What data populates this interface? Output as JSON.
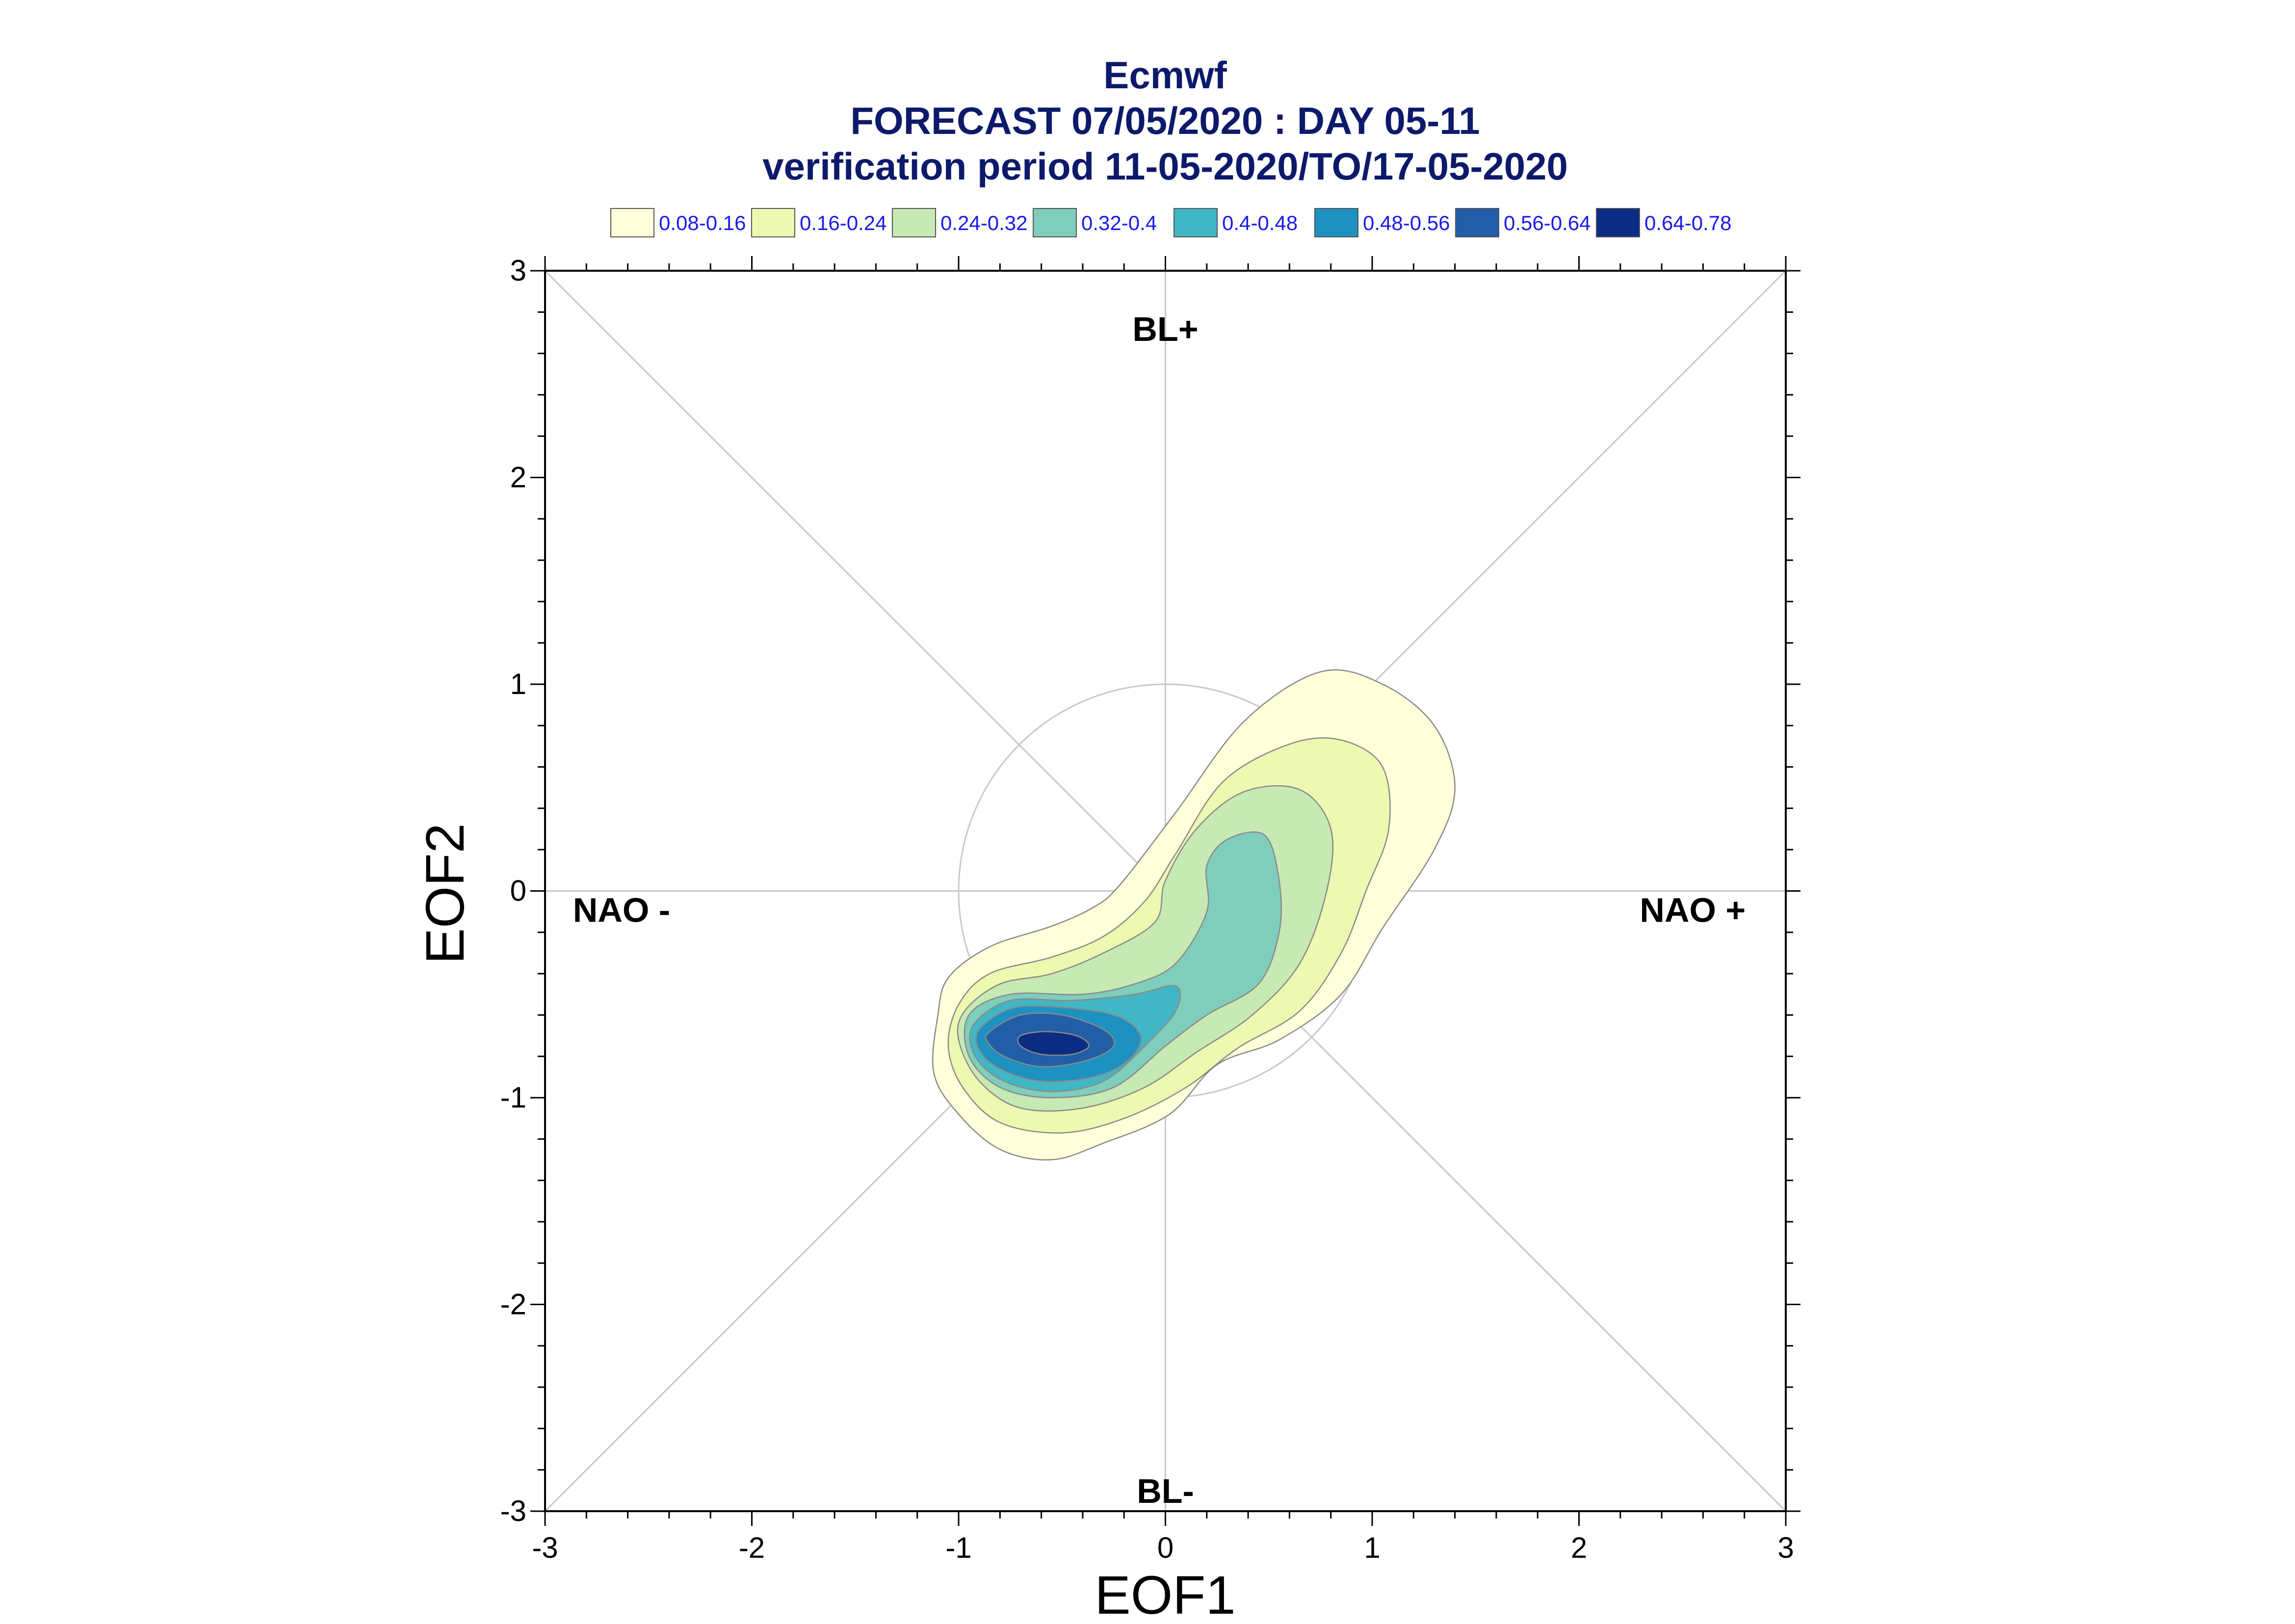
{
  "chart_data": {
    "type": "contour",
    "title_lines": [
      "Ecmwf",
      "FORECAST 07/05/2020 : DAY 05-11",
      "verification period 11-05-2020/TO/17-05-2020"
    ],
    "xlabel": "EOF1",
    "ylabel": "EOF2",
    "xlim": [
      -3,
      3
    ],
    "ylim": [
      -3,
      3
    ],
    "xticks": [
      "-3",
      "-2",
      "-1",
      "0",
      "1",
      "2",
      "3"
    ],
    "yticks": [
      "-3",
      "-2",
      "-1",
      "0",
      "1",
      "2",
      "3"
    ],
    "grid": false,
    "reference_circle_radius": 1,
    "region_labels": [
      {
        "text": "BL+",
        "x": 0,
        "y": 2.72
      },
      {
        "text": "BL-",
        "x": 0,
        "y": -2.9
      },
      {
        "text": "NAO -",
        "x": -2.63,
        "y": -0.09
      },
      {
        "text": "NAO +",
        "x": 2.55,
        "y": -0.09
      }
    ],
    "legend": [
      {
        "label": "0.08-0.16",
        "color": "#ffffd9"
      },
      {
        "label": "0.16-0.24",
        "color": "#edf8b1"
      },
      {
        "label": "0.24-0.32",
        "color": "#c7e9b4"
      },
      {
        "label": "0.32-0.4",
        "color": "#7fcdbb"
      },
      {
        "label": "0.4-0.48",
        "color": "#41b6c4"
      },
      {
        "label": "0.48-0.56",
        "color": "#1d91c0"
      },
      {
        "label": "0.56-0.64",
        "color": "#225ea8"
      },
      {
        "label": "0.64-0.78",
        "color": "#0c2c84"
      }
    ],
    "contours": [
      {
        "level": "0.08-0.16",
        "points": [
          [
            -1.1,
            -0.6
          ],
          [
            -1.05,
            -0.42
          ],
          [
            -0.85,
            -0.27
          ],
          [
            -0.55,
            -0.17
          ],
          [
            -0.35,
            -0.08
          ],
          [
            -0.22,
            0.03
          ],
          [
            0.05,
            0.38
          ],
          [
            0.38,
            0.82
          ],
          [
            0.75,
            1.06
          ],
          [
            1.05,
            1.0
          ],
          [
            1.3,
            0.8
          ],
          [
            1.4,
            0.5
          ],
          [
            1.3,
            0.2
          ],
          [
            1.05,
            -0.18
          ],
          [
            0.85,
            -0.5
          ],
          [
            0.55,
            -0.72
          ],
          [
            0.25,
            -0.84
          ],
          [
            0.02,
            -1.08
          ],
          [
            -0.3,
            -1.22
          ],
          [
            -0.55,
            -1.3
          ],
          [
            -0.8,
            -1.25
          ],
          [
            -1.0,
            -1.08
          ],
          [
            -1.12,
            -0.88
          ]
        ]
      },
      {
        "level": "0.16-0.24",
        "points": [
          [
            -1.0,
            -0.55
          ],
          [
            -0.85,
            -0.4
          ],
          [
            -0.55,
            -0.32
          ],
          [
            -0.3,
            -0.22
          ],
          [
            -0.1,
            -0.05
          ],
          [
            0.05,
            0.18
          ],
          [
            0.28,
            0.53
          ],
          [
            0.6,
            0.71
          ],
          [
            0.85,
            0.73
          ],
          [
            1.05,
            0.6
          ],
          [
            1.08,
            0.3
          ],
          [
            0.97,
            0.0
          ],
          [
            0.85,
            -0.3
          ],
          [
            0.65,
            -0.58
          ],
          [
            0.35,
            -0.76
          ],
          [
            0.1,
            -0.95
          ],
          [
            -0.2,
            -1.1
          ],
          [
            -0.5,
            -1.17
          ],
          [
            -0.8,
            -1.12
          ],
          [
            -0.98,
            -0.95
          ],
          [
            -1.05,
            -0.75
          ]
        ]
      },
      {
        "level": "0.24-0.32",
        "points": [
          [
            -0.97,
            -0.58
          ],
          [
            -0.8,
            -0.45
          ],
          [
            -0.55,
            -0.4
          ],
          [
            -0.3,
            -0.3
          ],
          [
            -0.05,
            -0.15
          ],
          [
            0.0,
            0.05
          ],
          [
            0.15,
            0.3
          ],
          [
            0.38,
            0.48
          ],
          [
            0.65,
            0.49
          ],
          [
            0.8,
            0.3
          ],
          [
            0.78,
            0.0
          ],
          [
            0.65,
            -0.35
          ],
          [
            0.42,
            -0.6
          ],
          [
            0.15,
            -0.78
          ],
          [
            -0.1,
            -0.95
          ],
          [
            -0.4,
            -1.05
          ],
          [
            -0.7,
            -1.05
          ],
          [
            -0.9,
            -0.92
          ],
          [
            -1.0,
            -0.72
          ]
        ]
      },
      {
        "level": "0.32-0.4",
        "points": [
          [
            -0.95,
            -0.6
          ],
          [
            -0.75,
            -0.5
          ],
          [
            -0.4,
            -0.5
          ],
          [
            -0.15,
            -0.45
          ],
          [
            0.05,
            -0.35
          ],
          [
            0.2,
            -0.1
          ],
          [
            0.2,
            0.12
          ],
          [
            0.3,
            0.25
          ],
          [
            0.48,
            0.27
          ],
          [
            0.55,
            0.05
          ],
          [
            0.55,
            -0.2
          ],
          [
            0.45,
            -0.45
          ],
          [
            0.2,
            -0.6
          ],
          [
            0.0,
            -0.75
          ],
          [
            -0.25,
            -0.95
          ],
          [
            -0.55,
            -1.0
          ],
          [
            -0.8,
            -0.95
          ],
          [
            -0.95,
            -0.8
          ]
        ]
      },
      {
        "level": "0.4-0.48",
        "points": [
          [
            -0.93,
            -0.65
          ],
          [
            -0.75,
            -0.53
          ],
          [
            -0.45,
            -0.53
          ],
          [
            -0.15,
            -0.5
          ],
          [
            0.05,
            -0.46
          ],
          [
            0.05,
            -0.58
          ],
          [
            -0.1,
            -0.75
          ],
          [
            -0.3,
            -0.92
          ],
          [
            -0.55,
            -0.97
          ],
          [
            -0.78,
            -0.92
          ],
          [
            -0.92,
            -0.8
          ]
        ]
      },
      {
        "level": "0.48-0.56",
        "points": [
          [
            -0.9,
            -0.67
          ],
          [
            -0.75,
            -0.57
          ],
          [
            -0.55,
            -0.56
          ],
          [
            -0.25,
            -0.6
          ],
          [
            -0.12,
            -0.7
          ],
          [
            -0.18,
            -0.82
          ],
          [
            -0.35,
            -0.9
          ],
          [
            -0.6,
            -0.92
          ],
          [
            -0.8,
            -0.86
          ],
          [
            -0.9,
            -0.77
          ]
        ]
      },
      {
        "level": "0.56-0.64",
        "points": [
          [
            -0.85,
            -0.68
          ],
          [
            -0.7,
            -0.6
          ],
          [
            -0.5,
            -0.6
          ],
          [
            -0.3,
            -0.67
          ],
          [
            -0.25,
            -0.75
          ],
          [
            -0.38,
            -0.82
          ],
          [
            -0.6,
            -0.85
          ],
          [
            -0.78,
            -0.8
          ],
          [
            -0.86,
            -0.73
          ]
        ]
      },
      {
        "level": "0.64-0.78",
        "points": [
          [
            -0.7,
            -0.7
          ],
          [
            -0.58,
            -0.68
          ],
          [
            -0.43,
            -0.7
          ],
          [
            -0.37,
            -0.75
          ],
          [
            -0.45,
            -0.79
          ],
          [
            -0.6,
            -0.79
          ],
          [
            -0.7,
            -0.75
          ]
        ]
      }
    ]
  }
}
